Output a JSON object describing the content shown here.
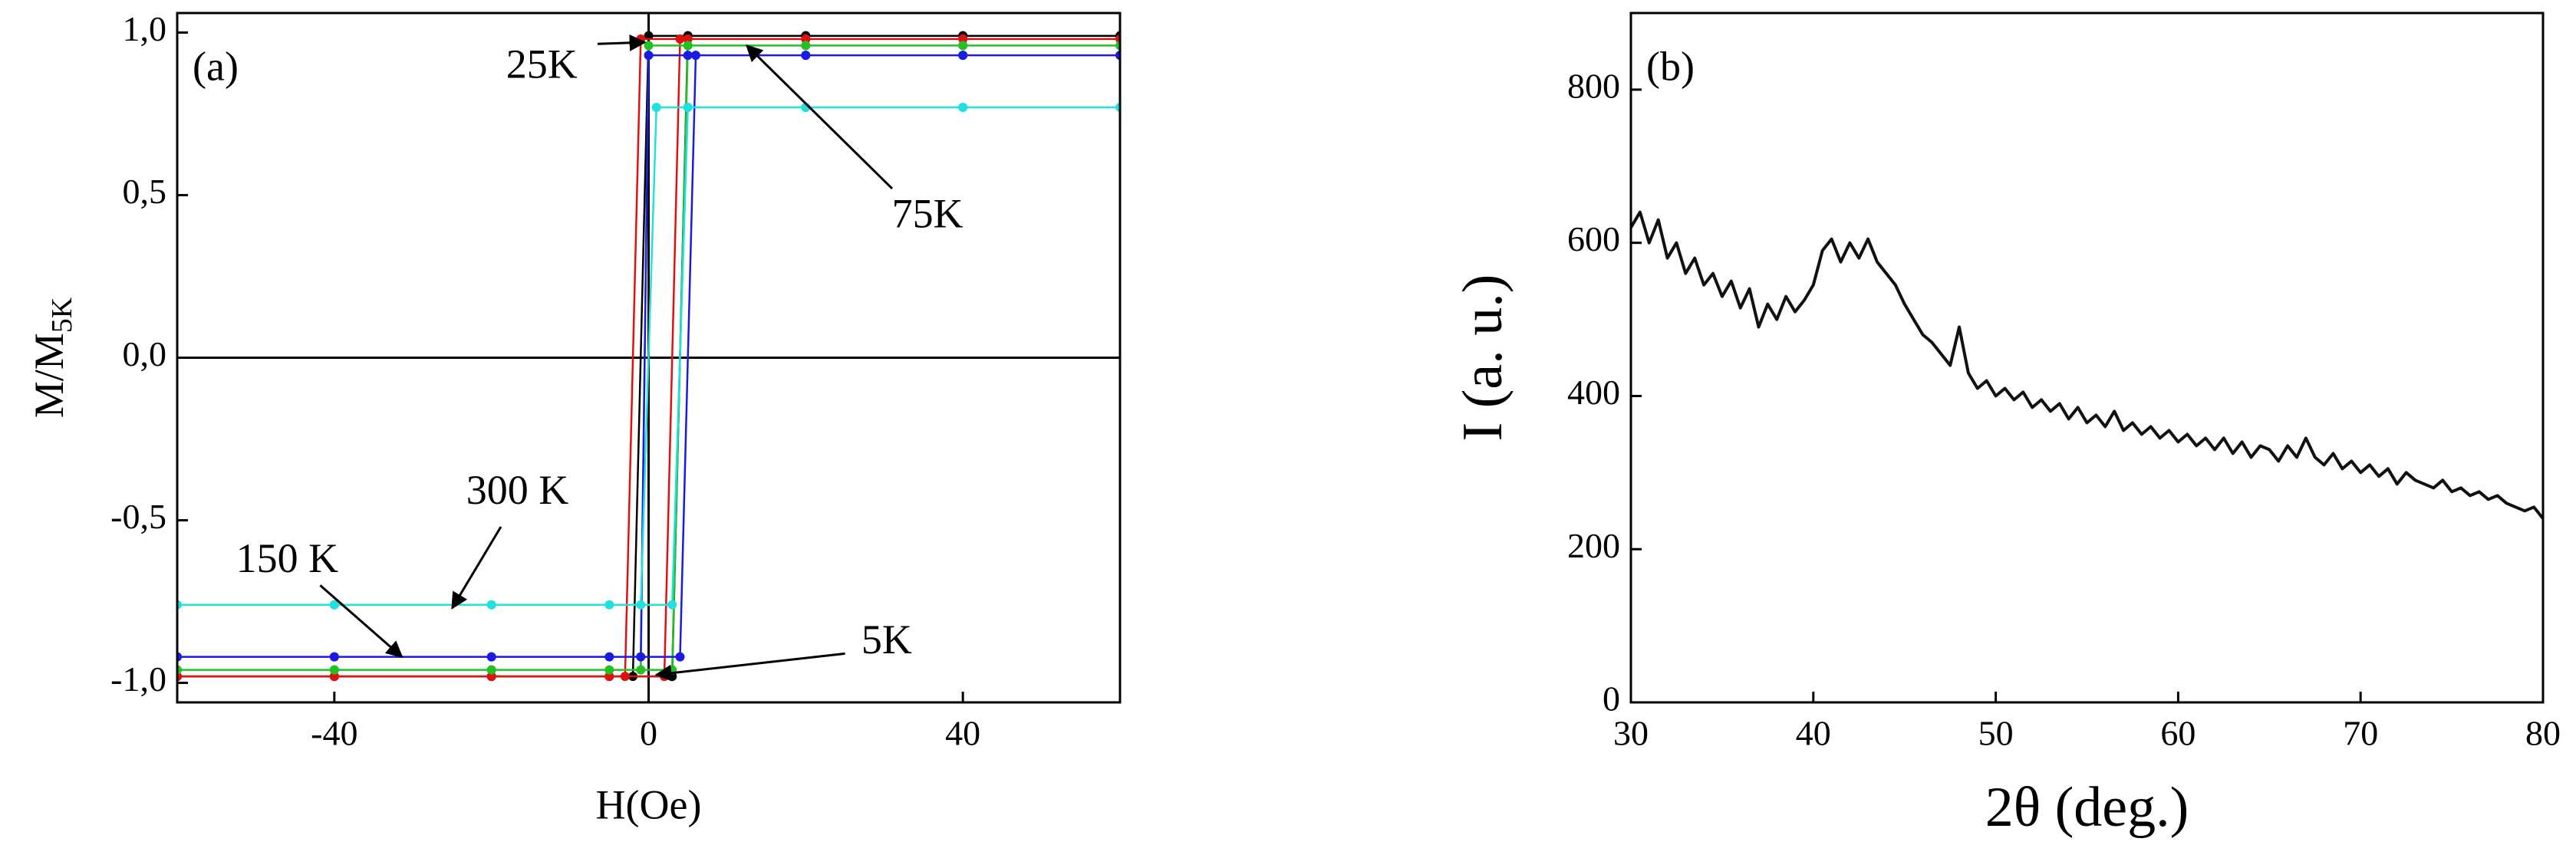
{
  "charts": [
    {
      "chart_data": {
        "type": "line",
        "panel_label": "(a)",
        "xlabel": "H(Oe)",
        "ylabel": "M/M",
        "ylabel_subscript": "5K",
        "xlim": [
          -60,
          60
        ],
        "ylim": [
          -1.06,
          1.06
        ],
        "xticks": [
          -40,
          0,
          40
        ],
        "yticks": [
          {
            "value": -1,
            "label": "-1,0"
          },
          {
            "value": -0.5,
            "label": "-0,5"
          },
          {
            "value": 0,
            "label": "0,0"
          },
          {
            "value": 0.5,
            "label": "0,5"
          },
          {
            "value": 1,
            "label": "1,0"
          }
        ],
        "markers": true,
        "series": [
          {
            "name": "5K",
            "color": "#000000",
            "x": [
              -60,
              -40,
              -20,
              -5,
              3,
              5,
              20,
              40,
              60,
              40,
              20,
              5,
              0,
              -2,
              -20,
              -40,
              -60
            ],
            "values": [
              -0.98,
              -0.98,
              -0.98,
              -0.98,
              -0.98,
              0.99,
              0.99,
              0.99,
              0.99,
              0.99,
              0.99,
              0.99,
              0.99,
              -0.98,
              -0.98,
              -0.98,
              -0.98
            ]
          },
          {
            "name": "25K",
            "color": "#e01010",
            "x": [
              -60,
              -40,
              -20,
              -5,
              2,
              4,
              20,
              40,
              60,
              40,
              20,
              5,
              -1,
              -3,
              -20,
              -40,
              -60
            ],
            "values": [
              -0.98,
              -0.98,
              -0.98,
              -0.98,
              -0.98,
              0.98,
              0.98,
              0.98,
              0.98,
              0.98,
              0.98,
              0.98,
              0.98,
              -0.98,
              -0.98,
              -0.98,
              -0.98
            ]
          },
          {
            "name": "75K",
            "color": "#22c022",
            "x": [
              -60,
              -40,
              -20,
              -5,
              3,
              5,
              20,
              40,
              60,
              40,
              20,
              5,
              0,
              -1,
              -20,
              -40,
              -60
            ],
            "values": [
              -0.96,
              -0.96,
              -0.96,
              -0.96,
              -0.96,
              0.96,
              0.96,
              0.96,
              0.96,
              0.96,
              0.96,
              0.96,
              0.96,
              -0.96,
              -0.96,
              -0.96,
              -0.96
            ]
          },
          {
            "name": "150 K",
            "color": "#1a1ae0",
            "x": [
              -60,
              -40,
              -20,
              -5,
              4,
              6,
              20,
              40,
              60,
              40,
              20,
              5,
              0,
              -1,
              -20,
              -40,
              -60
            ],
            "values": [
              -0.92,
              -0.92,
              -0.92,
              -0.92,
              -0.92,
              0.93,
              0.93,
              0.93,
              0.93,
              0.93,
              0.93,
              0.93,
              0.93,
              -0.92,
              -0.92,
              -0.92,
              -0.92
            ]
          },
          {
            "name": "300 K",
            "color": "#20e0e0",
            "x": [
              -60,
              -40,
              -20,
              -5,
              3,
              5,
              20,
              40,
              60,
              40,
              20,
              5,
              1,
              -1,
              -20,
              -40,
              -60
            ],
            "values": [
              -0.76,
              -0.76,
              -0.76,
              -0.76,
              -0.76,
              0.77,
              0.77,
              0.77,
              0.77,
              0.77,
              0.77,
              0.77,
              0.77,
              -0.76,
              -0.76,
              -0.76,
              -0.76
            ]
          }
        ]
      }
    },
    {
      "chart_data": {
        "type": "line",
        "panel_label": "(b)",
        "xlabel": "2θ (deg.)",
        "ylabel": "I (a. u.)",
        "xlim": [
          30,
          80
        ],
        "ylim": [
          0,
          900
        ],
        "xticks": [
          30,
          40,
          50,
          60,
          70,
          80
        ],
        "yticks": [
          0,
          200,
          400,
          600,
          800
        ],
        "markers": false,
        "series": [
          {
            "color": "#111111",
            "x": [
              30,
              30.5,
              31,
              31.5,
              32,
              32.5,
              33,
              33.5,
              34,
              34.5,
              35,
              35.5,
              36,
              36.5,
              37,
              37.5,
              38,
              38.5,
              39,
              39.5,
              40,
              40.5,
              41,
              41.5,
              42,
              42.5,
              43,
              43.5,
              44,
              44.5,
              45,
              45.5,
              46,
              46.5,
              47,
              47.5,
              48,
              48.5,
              49,
              49.5,
              50,
              50.5,
              51,
              51.5,
              52,
              52.5,
              53,
              53.5,
              54,
              54.5,
              55,
              55.5,
              56,
              56.5,
              57,
              57.5,
              58,
              58.5,
              59,
              59.5,
              60,
              60.5,
              61,
              61.5,
              62,
              62.5,
              63,
              63.5,
              64,
              64.5,
              65,
              65.5,
              66,
              66.5,
              67,
              67.5,
              68,
              68.5,
              69,
              69.5,
              70,
              70.5,
              71,
              71.5,
              72,
              72.5,
              73,
              73.5,
              74,
              74.5,
              75,
              75.5,
              76,
              76.5,
              77,
              77.5,
              78,
              78.5,
              79,
              79.5,
              80
            ],
            "values": [
              620,
              640,
              600,
              630,
              580,
              600,
              560,
              580,
              545,
              560,
              530,
              550,
              515,
              540,
              490,
              520,
              500,
              530,
              510,
              525,
              545,
              590,
              605,
              575,
              600,
              580,
              605,
              575,
              560,
              545,
              520,
              500,
              480,
              470,
              455,
              440,
              490,
              430,
              410,
              420,
              400,
              410,
              395,
              405,
              385,
              395,
              380,
              390,
              370,
              385,
              365,
              375,
              360,
              380,
              355,
              365,
              350,
              360,
              345,
              355,
              340,
              350,
              335,
              345,
              330,
              345,
              325,
              340,
              320,
              335,
              330,
              315,
              335,
              320,
              345,
              320,
              310,
              325,
              305,
              315,
              300,
              310,
              295,
              305,
              285,
              300,
              290,
              285,
              280,
              290,
              275,
              280,
              270,
              275,
              265,
              270,
              260,
              255,
              250,
              255,
              240
            ]
          }
        ]
      }
    }
  ]
}
